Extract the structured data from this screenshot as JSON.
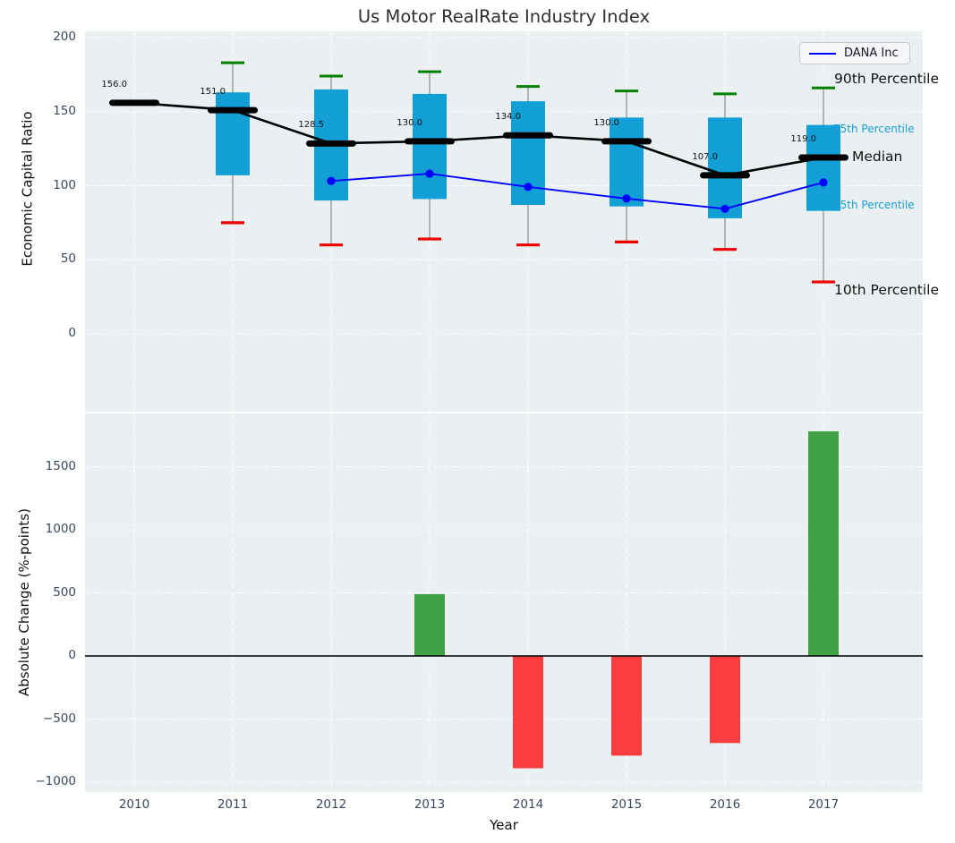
{
  "title": "Us Motor RealRate Industry Index",
  "legend": {
    "label": "DANA Inc"
  },
  "colors": {
    "panel_bg": "#eaeff1",
    "grid": "#ffffff",
    "box": "#129fd6",
    "whisker": "#8a8a8a",
    "cap_high": "#008000",
    "cap_low": "#ee0000",
    "median": "#000000",
    "dana_line": "#0000ff",
    "bar_positive": "#3fa244",
    "bar_negative": "#fa3d3f",
    "tick_label": "#39485e",
    "percentile_label": "#189fd4",
    "zero_line": "#000000"
  },
  "annotations": {
    "p90": "90th Percentile",
    "p75": "75th Percentile",
    "median": "Median",
    "p25": "25th Percentile",
    "p10": "10th Percentile"
  },
  "chart_data": [
    {
      "type": "box",
      "title": "Us Motor RealRate Industry Index",
      "ylabel": "Economic Capital Ratio",
      "categories": [
        2010,
        2011,
        2012,
        2013,
        2014,
        2015,
        2016,
        2017
      ],
      "yticks": [
        0,
        50,
        100,
        150,
        200
      ],
      "ytick_labels": [
        "0",
        "50",
        "100",
        "150",
        "200"
      ],
      "ylim": [
        -53,
        205
      ],
      "grid": true,
      "legend_position": "upper right",
      "series": [
        {
          "name": "Median",
          "values": [
            156.0,
            151.0,
            128.5,
            130.0,
            134.0,
            130.0,
            107.0,
            119.0
          ]
        },
        {
          "name": "DANA Inc",
          "values": [
            null,
            null,
            103.2,
            108.1,
            99.2,
            91.3,
            84.4,
            102.2
          ]
        }
      ],
      "median_labels": [
        "156.0",
        "151.0",
        "128.5",
        "130.0",
        "134.0",
        "130.0",
        "107.0",
        "119.0"
      ],
      "boxes": {
        "q75": [
          null,
          163,
          165,
          162,
          157,
          146,
          146,
          141
        ],
        "q25": [
          null,
          107,
          90,
          91,
          87,
          86,
          78,
          83
        ],
        "p90": [
          null,
          183,
          174,
          177,
          167,
          164,
          162,
          166
        ],
        "p10": [
          null,
          75,
          60,
          64,
          60,
          62,
          57,
          35
        ]
      }
    },
    {
      "type": "bar",
      "xlabel": "Year",
      "ylabel": "Absolute Change (%-points)",
      "categories": [
        2010,
        2011,
        2012,
        2013,
        2014,
        2015,
        2016,
        2017
      ],
      "xtick_labels": [
        "2010",
        "2011",
        "2012",
        "2013",
        "2014",
        "2015",
        "2016",
        "2017"
      ],
      "values": [
        null,
        null,
        null,
        490,
        -890,
        -790,
        -690,
        1780
      ],
      "yticks": [
        -1000,
        -500,
        0,
        500,
        1000,
        1500
      ],
      "ytick_labels": [
        "−1000",
        "−500",
        "0",
        "500",
        "1000",
        "1500"
      ],
      "ylim": [
        -1080,
        1940
      ],
      "grid": true
    }
  ]
}
